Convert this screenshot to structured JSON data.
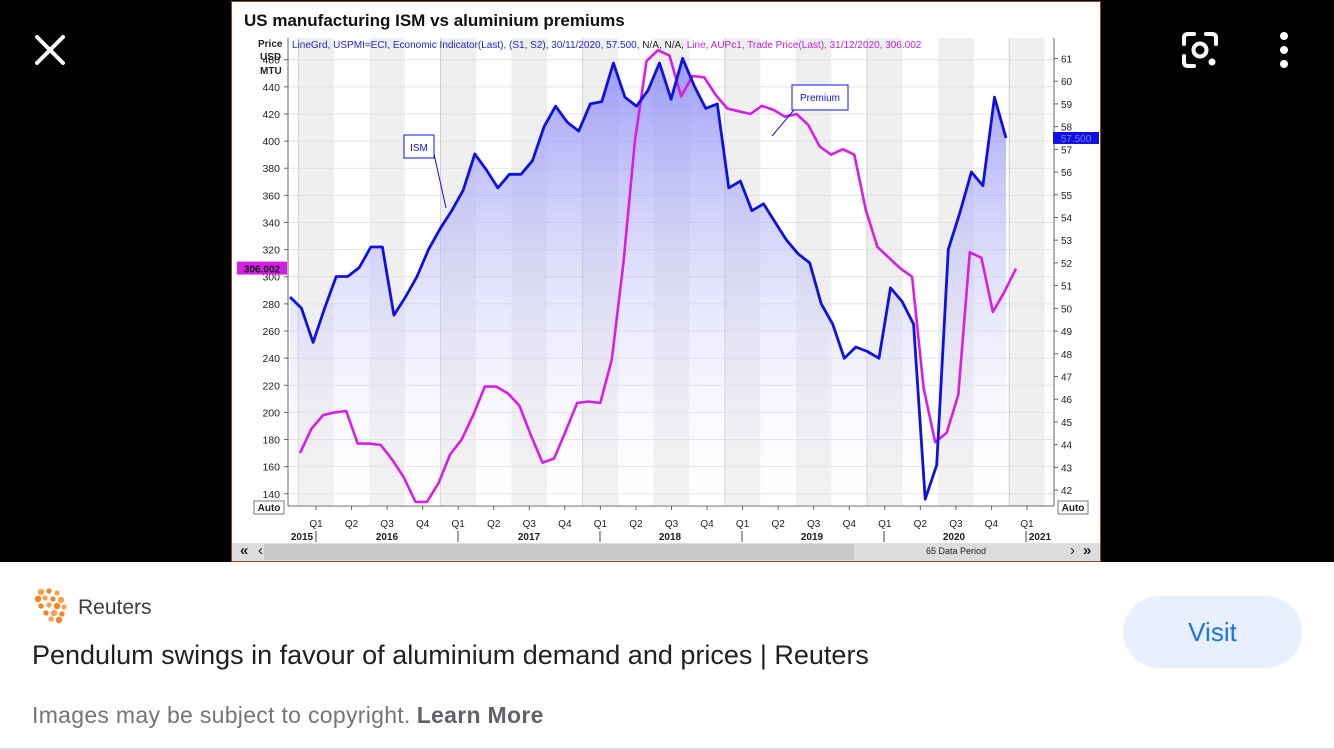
{
  "chart_data": {
    "type": "line",
    "title": "US manufacturing ISM vs aluminium premiums",
    "legend_text_blue": "LineGrd, USPMI=ECI, Economic Indicator(Last), (S1, S2), 30/11/2020, 57.500, ",
    "legend_text_black": "N/A, N/A, ",
    "legend_text_magenta": "Line, AUPc1, Trade Price(Last), 31/12/2020, 306.002",
    "left_axis_label": [
      "Price",
      "USD",
      "MTU"
    ],
    "left_ticks": [
      140,
      160,
      180,
      200,
      220,
      240,
      260,
      280,
      300,
      320,
      340,
      360,
      380,
      400,
      420,
      440,
      460
    ],
    "left_ylim": [
      131,
      476
    ],
    "right_ticks": [
      42,
      43,
      44,
      45,
      46,
      47,
      48,
      49,
      50,
      51,
      52,
      53,
      54,
      55,
      56,
      57,
      58,
      59,
      60,
      61
    ],
    "right_ylim": [
      41.3,
      61.9
    ],
    "auto_label": "Auto",
    "quarter_labels": [
      "Q1",
      "Q2",
      "Q3",
      "Q4",
      "Q1",
      "Q2",
      "Q3",
      "Q4",
      "Q1",
      "Q2",
      "Q3",
      "Q4",
      "Q1",
      "Q2",
      "Q3",
      "Q4",
      "Q1",
      "Q2",
      "Q3",
      "Q4",
      "Q1"
    ],
    "year_labels": [
      "2015",
      "2016",
      "2017",
      "2018",
      "2019",
      "2020",
      "2021"
    ],
    "data_period_label": "65 Data Period",
    "ism_current_label": "57.500",
    "premium_current_label": "306.002",
    "annotations": {
      "ism": "ISM",
      "premium": "Premium"
    },
    "series": [
      {
        "name": "ISM",
        "color": "#1010e0",
        "axis": "right",
        "values": [
          50.5,
          50.0,
          48.5,
          50.0,
          51.4,
          51.4,
          51.8,
          52.7,
          52.7,
          49.7,
          50.5,
          51.4,
          52.6,
          53.5,
          54.3,
          55.2,
          56.8,
          56.1,
          55.3,
          55.9,
          55.9,
          56.5,
          58.0,
          58.9,
          58.2,
          57.8,
          59.0,
          59.1,
          60.8,
          59.3,
          58.9,
          59.6,
          60.8,
          59.2,
          61.0,
          59.8,
          58.8,
          59.0,
          55.3,
          55.6,
          54.3,
          54.6,
          53.8,
          53.0,
          52.4,
          52.0,
          50.2,
          49.3,
          47.8,
          48.3,
          48.1,
          47.8,
          50.9,
          50.3,
          49.3,
          41.6,
          43.1,
          52.6,
          54.2,
          56.0,
          55.4,
          59.3,
          57.5
        ],
        "values_note_unused": ""
      },
      {
        "name": "Premium",
        "color": "#d61fe6",
        "axis": "left",
        "values": [
          170,
          188,
          198,
          200,
          201,
          177,
          177,
          176,
          165,
          152,
          134,
          134,
          148,
          169,
          180,
          198,
          219,
          219,
          214,
          205,
          183,
          163,
          166,
          186,
          207,
          208,
          207,
          239,
          310,
          400,
          459,
          467,
          463,
          433,
          448,
          447,
          434,
          424,
          422,
          420,
          426,
          423,
          418,
          420,
          412,
          396,
          390,
          394,
          390,
          349,
          322,
          314,
          306,
          300,
          218,
          178,
          185,
          213,
          318,
          314,
          274,
          289,
          306
        ]
      }
    ]
  },
  "ui": {
    "close_icon": "close-icon",
    "lens_icon": "google-lens-icon",
    "more_icon": "more-vert-icon",
    "source_name": "Reuters",
    "headline": "Pendulum swings in favour of aluminium demand and prices | Reuters",
    "visit_label": "Visit",
    "copyright_text": "Images may be subject to copyright.",
    "learn_more": "Learn More",
    "accent_color": "#1a73e8",
    "visit_bg": "#e8f0fe"
  }
}
